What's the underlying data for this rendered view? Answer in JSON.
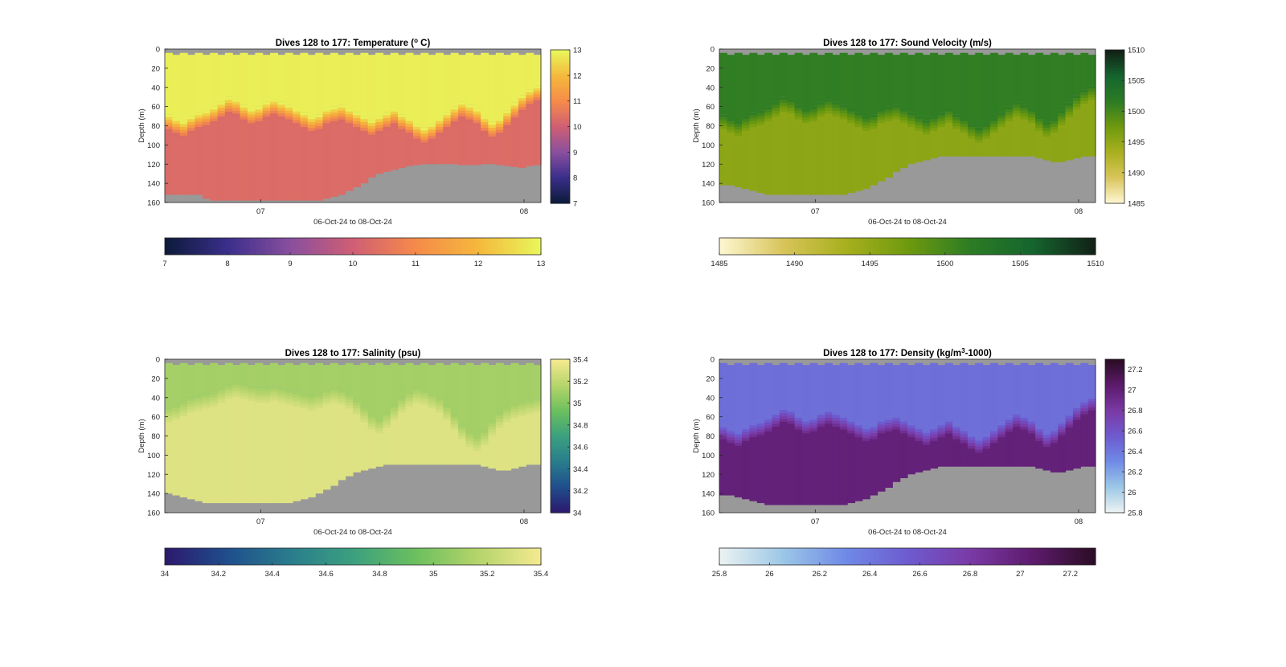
{
  "chart_data": [
    {
      "type": "heatmap",
      "title": "Dives 128 to 177: Temperature (° C)",
      "title_main": "Dives 128 to 177: Temperature (",
      "title_sup": "o",
      "title_tail": " C)",
      "xlabel": "06-Oct-24 to 08-Oct-24",
      "ylabel": "Depth (m)",
      "ylim": [
        0,
        160
      ],
      "y_ticks": [
        "0",
        "20",
        "40",
        "60",
        "80",
        "100",
        "120",
        "140",
        "160"
      ],
      "x_ticks": [
        "07",
        "08"
      ],
      "colormap": [
        "#0d1b3c",
        "#3b2f8c",
        "#8a4f9e",
        "#cf5e74",
        "#f58a4a",
        "#f5b73c",
        "#e9f55a"
      ],
      "clim": [
        7,
        13
      ],
      "side_colorbar_ticks": [
        "7",
        "8",
        "9",
        "10",
        "11",
        "12",
        "13"
      ],
      "bottom_colorbar_ticks": [
        "7",
        "8",
        "9",
        "10",
        "11",
        "12",
        "13"
      ],
      "surface_value": 12.9,
      "thermocline_depth_m": [
        68,
        72,
        75,
        70,
        66,
        64,
        60,
        55,
        50,
        52,
        58,
        62,
        60,
        55,
        52,
        55,
        58,
        62,
        66,
        70,
        68,
        62,
        60,
        58,
        62,
        66,
        70,
        74,
        70,
        66,
        62,
        68,
        72,
        78,
        82,
        78,
        72,
        66,
        60,
        55,
        58,
        62,
        70,
        76,
        72,
        64,
        56,
        48,
        42,
        38
      ],
      "lower_layer_value": 10.3,
      "bottom_depth_m": [
        152,
        152,
        152,
        152,
        152,
        156,
        158,
        158,
        158,
        158,
        158,
        158,
        158,
        158,
        158,
        158,
        158,
        158,
        158,
        158,
        158,
        156,
        154,
        152,
        148,
        144,
        140,
        134,
        130,
        128,
        126,
        124,
        122,
        121,
        120,
        120,
        120,
        120,
        120,
        121,
        121,
        121,
        120,
        120,
        121,
        122,
        123,
        124,
        122,
        121
      ],
      "nodata_color": "#999999"
    },
    {
      "type": "heatmap",
      "title": "Dives 128 to 177: Sound Velocity (m/s)",
      "title_main": "Dives 128 to 177: Sound Velocity (m/s)",
      "title_sup": "",
      "title_tail": "",
      "xlabel": "06-Oct-24 to 08-Oct-24",
      "ylabel": "Depth (m)",
      "ylim": [
        0,
        160
      ],
      "y_ticks": [
        "0",
        "20",
        "40",
        "60",
        "80",
        "100",
        "120",
        "140",
        "160"
      ],
      "x_ticks": [
        "07",
        "08"
      ],
      "colormap": [
        "#fdf6cf",
        "#d8c45a",
        "#a8b01e",
        "#6f9a0e",
        "#2d7c24",
        "#15662e",
        "#122217"
      ],
      "clim": [
        1485,
        1510
      ],
      "side_colorbar_ticks": [
        "1485",
        "1490",
        "1495",
        "1500",
        "1505",
        "1510"
      ],
      "bottom_colorbar_ticks": [
        "1485",
        "1490",
        "1495",
        "1500",
        "1505",
        "1510"
      ],
      "surface_value": 1501.5,
      "thermocline_depth_m": [
        68,
        72,
        75,
        70,
        66,
        64,
        60,
        55,
        50,
        52,
        58,
        62,
        60,
        55,
        52,
        55,
        58,
        62,
        66,
        70,
        68,
        62,
        60,
        58,
        62,
        66,
        70,
        74,
        70,
        66,
        62,
        68,
        72,
        78,
        82,
        78,
        72,
        66,
        60,
        55,
        58,
        62,
        70,
        76,
        72,
        64,
        56,
        48,
        42,
        38
      ],
      "lower_layer_value": 1495.3,
      "bottom_depth_m": [
        142,
        142,
        144,
        146,
        148,
        150,
        152,
        152,
        152,
        152,
        152,
        152,
        152,
        152,
        152,
        152,
        152,
        150,
        148,
        146,
        142,
        138,
        134,
        128,
        124,
        120,
        118,
        116,
        114,
        112,
        112,
        112,
        112,
        112,
        112,
        112,
        112,
        112,
        112,
        112,
        112,
        112,
        114,
        116,
        118,
        118,
        116,
        114,
        112,
        112
      ],
      "nodata_color": "#999999"
    },
    {
      "type": "heatmap",
      "title": "Dives 128 to 177: Salinity (psu)",
      "title_main": "Dives 128 to 177: Salinity (psu)",
      "title_sup": "",
      "title_tail": "",
      "xlabel": "06-Oct-24 to 08-Oct-24",
      "ylabel": "Depth (m)",
      "ylim": [
        0,
        160
      ],
      "y_ticks": [
        "0",
        "20",
        "40",
        "60",
        "80",
        "100",
        "120",
        "140",
        "160"
      ],
      "x_ticks": [
        "07",
        "08"
      ],
      "colormap": [
        "#2c1a6e",
        "#1f4f8c",
        "#2a7d8c",
        "#3ba07f",
        "#6bbf5e",
        "#b4d46a",
        "#f2e98f"
      ],
      "clim": [
        34.0,
        35.4
      ],
      "side_colorbar_ticks": [
        "34",
        "34.2",
        "34.4",
        "34.6",
        "34.8",
        "35",
        "35.2",
        "35.4"
      ],
      "bottom_colorbar_ticks": [
        "34",
        "34.2",
        "34.4",
        "34.6",
        "34.8",
        "35",
        "35.2",
        "35.4"
      ],
      "surface_value": 35.12,
      "thermocline_depth_m": [
        50,
        48,
        44,
        40,
        38,
        36,
        34,
        30,
        26,
        24,
        26,
        28,
        30,
        30,
        28,
        30,
        32,
        34,
        36,
        38,
        36,
        32,
        30,
        32,
        36,
        42,
        50,
        58,
        62,
        56,
        48,
        40,
        34,
        30,
        32,
        36,
        40,
        48,
        58,
        68,
        76,
        80,
        74,
        64,
        56,
        50,
        46,
        44,
        42,
        40
      ],
      "lower_layer_value": 35.32,
      "bottom_depth_m": [
        140,
        142,
        144,
        146,
        148,
        150,
        150,
        150,
        150,
        150,
        150,
        150,
        150,
        150,
        150,
        150,
        150,
        148,
        146,
        144,
        140,
        136,
        132,
        126,
        122,
        118,
        116,
        114,
        112,
        110,
        110,
        110,
        110,
        110,
        110,
        110,
        110,
        110,
        110,
        110,
        110,
        110,
        112,
        114,
        116,
        116,
        114,
        112,
        110,
        110
      ],
      "nodata_color": "#999999"
    },
    {
      "type": "heatmap",
      "title": "Dives 128 to 177: Density (kg/m³-1000)",
      "title_main": "Dives 128 to 177: Density (kg/m",
      "title_sup": "3",
      "title_tail": "-1000)",
      "xlabel": "06-Oct-24 to 08-Oct-24",
      "ylabel": "Depth (m)",
      "ylim": [
        0,
        160
      ],
      "y_ticks": [
        "0",
        "20",
        "40",
        "60",
        "80",
        "100",
        "120",
        "140",
        "160"
      ],
      "x_ticks": [
        "07",
        "08"
      ],
      "colormap": [
        "#eaf2f2",
        "#9cc7e6",
        "#6f8ae6",
        "#6e5bd0",
        "#7a3aa6",
        "#5e1b6e",
        "#2c0d26"
      ],
      "clim": [
        25.8,
        27.3
      ],
      "side_colorbar_ticks": [
        "25.8",
        "26",
        "26.2",
        "26.4",
        "26.6",
        "26.8",
        "27",
        "27.2"
      ],
      "bottom_colorbar_ticks": [
        "25.8",
        "26",
        "26.2",
        "26.4",
        "26.6",
        "26.8",
        "27",
        "27.2"
      ],
      "surface_value": 26.45,
      "thermocline_depth_m": [
        68,
        72,
        75,
        70,
        66,
        64,
        60,
        55,
        50,
        52,
        58,
        62,
        60,
        55,
        52,
        55,
        58,
        62,
        66,
        70,
        68,
        62,
        60,
        58,
        62,
        66,
        70,
        74,
        70,
        66,
        62,
        68,
        72,
        78,
        82,
        78,
        72,
        66,
        60,
        55,
        58,
        62,
        70,
        76,
        72,
        64,
        56,
        48,
        42,
        38
      ],
      "lower_layer_value": 27.0,
      "bottom_depth_m": [
        142,
        142,
        144,
        146,
        148,
        150,
        152,
        152,
        152,
        152,
        152,
        152,
        152,
        152,
        152,
        152,
        152,
        150,
        148,
        146,
        142,
        138,
        134,
        128,
        124,
        120,
        118,
        116,
        114,
        112,
        112,
        112,
        112,
        112,
        112,
        112,
        112,
        112,
        112,
        112,
        112,
        112,
        114,
        116,
        118,
        118,
        116,
        114,
        112,
        112
      ],
      "nodata_color": "#999999"
    }
  ]
}
